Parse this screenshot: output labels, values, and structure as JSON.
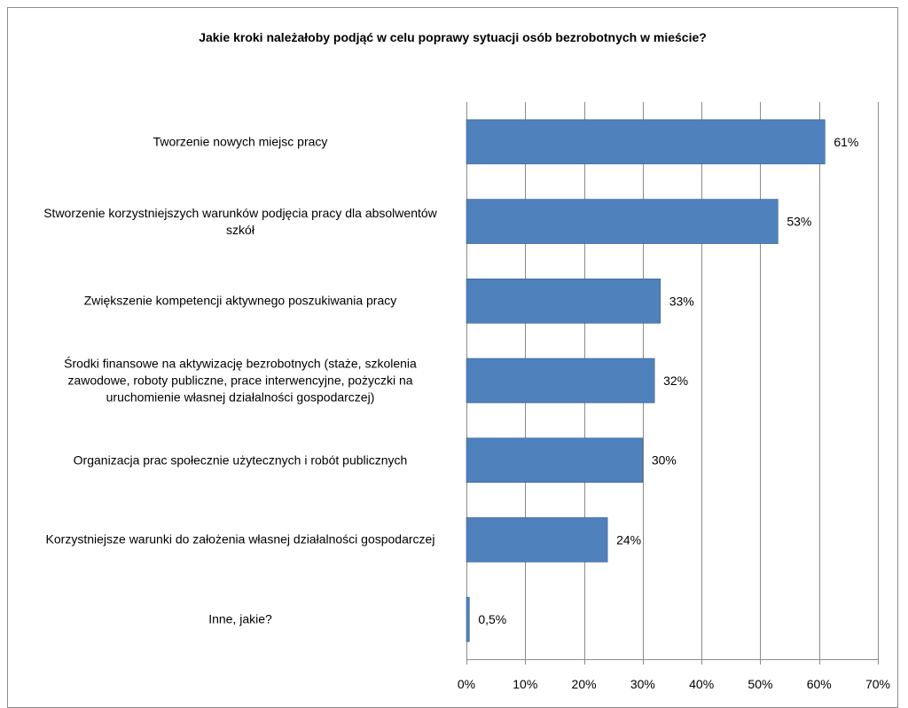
{
  "chart_data": {
    "type": "bar",
    "orientation": "horizontal",
    "title": "Jakie kroki należałoby  podjąć  w celu poprawy sytuacji osób bezrobotnych  w mieście?",
    "xlabel": "",
    "ylabel": "",
    "categories": [
      "Tworzenie nowych miejsc pracy",
      "Stworzenie korzystniejszych warunków podjęcia pracy dla absolwentów szkół",
      "Zwiększenie kompetencji aktywnego poszukiwania pracy",
      "Środki finansowe na aktywizację bezrobotnych (staże, szkolenia zawodowe, roboty publiczne, prace interwencyjne, pożyczki na uruchomienie własnej działalności gospodarczej)",
      "Organizacja prac społecznie użytecznych  i robót publicznych",
      "Korzystniejsze warunki do założenia własnej działalności gospodarczej",
      "Inne, jakie?"
    ],
    "values": [
      61,
      53,
      33,
      32,
      30,
      24,
      0.5
    ],
    "value_labels": [
      "61%",
      "53%",
      "33%",
      "32%",
      "30%",
      "24%",
      "0,5%"
    ],
    "xlim": [
      0,
      70
    ],
    "x_ticks": [
      0,
      10,
      20,
      30,
      40,
      50,
      60,
      70
    ],
    "x_tick_labels": [
      "0%",
      "10%",
      "20%",
      "30%",
      "40%",
      "50%",
      "60%",
      "70%"
    ],
    "grid": true,
    "legend": "none",
    "bar_color": "#4f81bd",
    "bar_border_color": "#385d8a",
    "grid_color": "#8c8c8c"
  }
}
